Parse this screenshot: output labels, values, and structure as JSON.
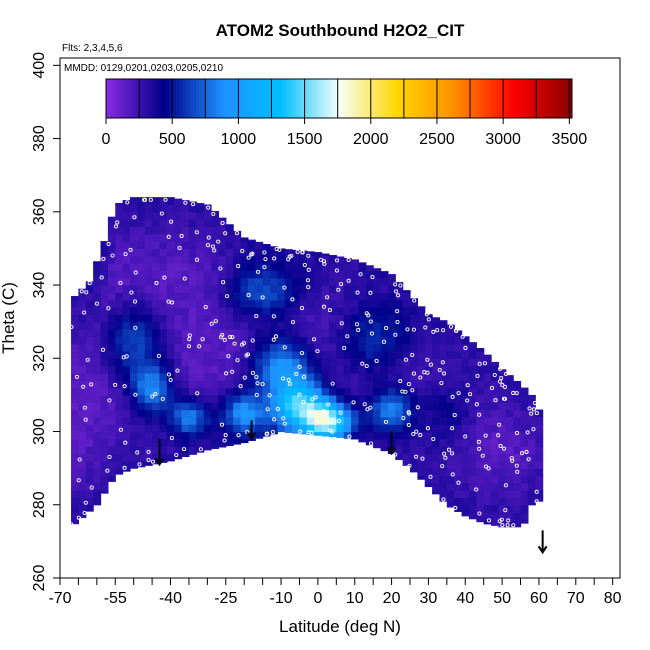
{
  "chart_data": {
    "type": "heatmap",
    "title": "ATOM2 Southbound H2O2_CIT",
    "flights_note": "Flts: 2,3,4,5,6",
    "dates_note": "MMDD: 0129,0201,0203,0205,0210",
    "xlabel": "Latitude (deg N)",
    "ylabel": "Theta (C)",
    "xlim": [
      -70,
      82
    ],
    "ylim": [
      260,
      402
    ],
    "x_major_ticks": [
      -70,
      -55,
      -40,
      -25,
      -10,
      0,
      10,
      20,
      30,
      40,
      50,
      60,
      70,
      80
    ],
    "x_minor_ticks": [
      -65,
      -60,
      -50,
      -45,
      -35,
      -30,
      -20,
      -15,
      -5,
      5,
      15,
      25,
      35,
      45,
      55,
      65,
      75
    ],
    "y_ticks": [
      260,
      280,
      300,
      320,
      340,
      360,
      380,
      400
    ],
    "colorbar": {
      "min": 0,
      "max": 3520,
      "ticks": [
        0,
        500,
        1000,
        1500,
        2000,
        2500,
        3000,
        3500
      ],
      "colors": [
        "#8a2be2",
        "#00008b",
        "#1e90ff",
        "#00bfff",
        "#f5fffa",
        "#ffd700",
        "#ff8c00",
        "#ff0000",
        "#8b0000"
      ]
    },
    "field": {
      "lat_start": -67,
      "lat_step": 2,
      "theta_step": 2,
      "lower_boundary": [
        [
          -67,
          274
        ],
        [
          -60,
          280
        ],
        [
          -55,
          288
        ],
        [
          -50,
          290
        ],
        [
          -45,
          291
        ],
        [
          -40,
          292
        ],
        [
          -30,
          295
        ],
        [
          -20,
          297
        ],
        [
          -10,
          300
        ],
        [
          0,
          299
        ],
        [
          10,
          298
        ],
        [
          20,
          294
        ],
        [
          25,
          290
        ],
        [
          30,
          285
        ],
        [
          35,
          280
        ],
        [
          40,
          277
        ],
        [
          45,
          275
        ],
        [
          50,
          274
        ],
        [
          55,
          274
        ],
        [
          57,
          276
        ],
        [
          58,
          280
        ],
        [
          60,
          281
        ]
      ],
      "upper_boundary": [
        [
          -67,
          336
        ],
        [
          -62,
          341
        ],
        [
          -58,
          352
        ],
        [
          -55,
          362
        ],
        [
          -50,
          364
        ],
        [
          -40,
          364
        ],
        [
          -30,
          362
        ],
        [
          -20,
          353
        ],
        [
          -10,
          350
        ],
        [
          0,
          349
        ],
        [
          10,
          347
        ],
        [
          20,
          343
        ],
        [
          30,
          332
        ],
        [
          35,
          330
        ],
        [
          40,
          326
        ],
        [
          45,
          322
        ],
        [
          50,
          317
        ],
        [
          55,
          313
        ],
        [
          58,
          310
        ],
        [
          60,
          306
        ]
      ],
      "enhancements": [
        {
          "lat": -5,
          "theta": 307,
          "value": 1150,
          "lat_width": 7,
          "theta_width": 7
        },
        {
          "lat": 3,
          "theta": 303,
          "value": 1300,
          "lat_width": 6,
          "theta_width": 5
        },
        {
          "lat": -10,
          "theta": 318,
          "value": 700,
          "lat_width": 8,
          "theta_width": 8
        },
        {
          "lat": -45,
          "theta": 312,
          "value": 650,
          "lat_width": 6,
          "theta_width": 7
        },
        {
          "lat": -35,
          "theta": 304,
          "value": 600,
          "lat_width": 5,
          "theta_width": 5
        },
        {
          "lat": -20,
          "theta": 305,
          "value": 650,
          "lat_width": 6,
          "theta_width": 6
        },
        {
          "lat": 20,
          "theta": 306,
          "value": 600,
          "lat_width": 6,
          "theta_width": 6
        },
        {
          "lat": -50,
          "theta": 325,
          "value": 450,
          "lat_width": 8,
          "theta_width": 10
        },
        {
          "lat": -15,
          "theta": 338,
          "value": 450,
          "lat_width": 10,
          "theta_width": 8
        },
        {
          "lat": 15,
          "theta": 325,
          "value": 400,
          "lat_width": 10,
          "theta_width": 10
        },
        {
          "lat": 35,
          "theta": 305,
          "value": 250,
          "lat_width": 8,
          "theta_width": 10
        }
      ]
    },
    "down_arrows": [
      {
        "lat": -43,
        "theta_top": 298,
        "theta_bottom": 291
      },
      {
        "lat": -18,
        "theta_top": 303,
        "theta_bottom": 298
      },
      {
        "lat": 20,
        "theta_top": 300,
        "theta_bottom": 294
      },
      {
        "lat": 61,
        "theta_top": 273,
        "theta_bottom": 267
      }
    ],
    "sample_points_per_band": 60
  }
}
